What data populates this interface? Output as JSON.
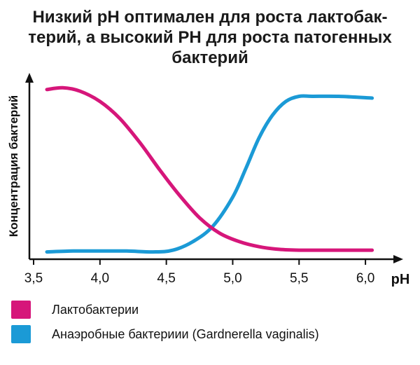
{
  "chart_data": {
    "type": "line",
    "title_lines": [
      "Низкий pH оптимален для роста лактобак-",
      "терий, а высокий PH для роста патогенных",
      "бактерий"
    ],
    "xlabel": "pH",
    "ylabel": "Концентрация бактерий",
    "xlim": [
      3.5,
      6.2
    ],
    "ylim": [
      0,
      1
    ],
    "x_ticks": [
      "3,5",
      "4,0",
      "4,5",
      "5,0",
      "5,5",
      "6,0"
    ],
    "x_tick_values": [
      3.5,
      4.0,
      4.5,
      5.0,
      5.5,
      6.0
    ],
    "grid": false,
    "legend_position": "bottom-left",
    "series": [
      {
        "name": "Лактобактерии",
        "color": "#d6167a",
        "x": [
          3.6,
          3.72,
          3.85,
          4.0,
          4.15,
          4.3,
          4.45,
          4.6,
          4.75,
          4.9,
          5.05,
          5.2,
          5.35,
          5.5,
          5.7,
          6.0,
          6.05
        ],
        "y": [
          0.96,
          0.97,
          0.95,
          0.89,
          0.79,
          0.65,
          0.49,
          0.34,
          0.21,
          0.12,
          0.07,
          0.04,
          0.025,
          0.02,
          0.02,
          0.02,
          0.02
        ]
      },
      {
        "name": "Анаэробные бактериии (Gardnerella vaginalis)",
        "color": "#1b9ad6",
        "x": [
          3.6,
          3.8,
          4.0,
          4.2,
          4.4,
          4.55,
          4.7,
          4.85,
          5.0,
          5.1,
          5.2,
          5.3,
          5.4,
          5.5,
          5.6,
          5.8,
          6.05
        ],
        "y": [
          0.01,
          0.015,
          0.015,
          0.015,
          0.01,
          0.02,
          0.07,
          0.16,
          0.33,
          0.5,
          0.68,
          0.81,
          0.89,
          0.92,
          0.92,
          0.92,
          0.91
        ]
      }
    ]
  },
  "legend": {
    "items": [
      {
        "label": "Лактобактерии",
        "color": "#d6167a"
      },
      {
        "label": "Анаэробные бактериии (Gardnerella vaginalis)",
        "color": "#1b9ad6"
      }
    ]
  }
}
